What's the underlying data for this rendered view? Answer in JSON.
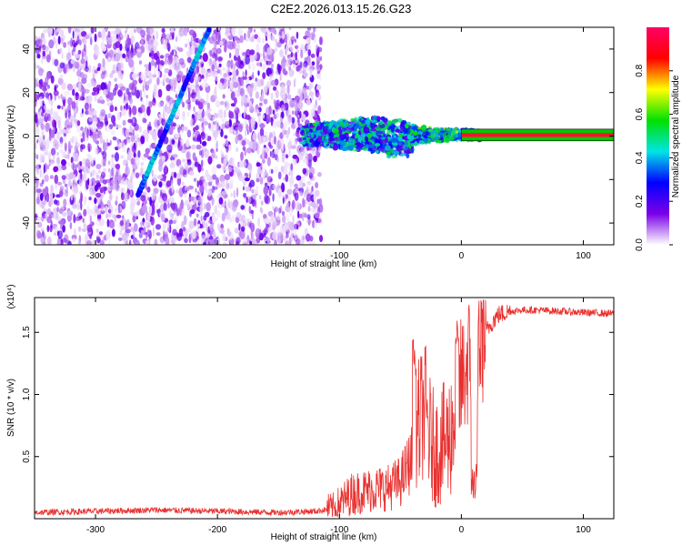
{
  "title": "C2E2.2026.013.15.26.G23",
  "chart_data": [
    {
      "type": "heatmap",
      "xlabel": "Height of straight line (km)",
      "ylabel": "Frequency (Hz)",
      "xlim": [
        -350,
        125
      ],
      "ylim": [
        -50,
        50
      ],
      "xticks": [
        -300,
        -200,
        -100,
        0,
        100
      ],
      "yticks": [
        -40,
        -20,
        0,
        20,
        40
      ],
      "colorbar": {
        "label": "Normalized spectral amplitude",
        "range": [
          0,
          1
        ],
        "ticks": [
          "0.0",
          "0.2",
          "0.4",
          "0.6",
          "0.8"
        ],
        "colors": [
          "#ffffff",
          "#7a00e8",
          "#0000ff",
          "#00e5e5",
          "#00e000",
          "#ffff00",
          "#ff0000",
          "#ff0066"
        ]
      },
      "features": {
        "noise_region_x": [
          -350,
          -130
        ],
        "doppler_line": {
          "x_start": -265,
          "y_start": -27,
          "x_end": -207,
          "y_end": 49
        },
        "carrier_band": {
          "x_start": -130,
          "x_end": 125,
          "y_center": 0.5,
          "y_halfwidth": 1.5
        }
      }
    },
    {
      "type": "line",
      "xlabel": "Height of straight line (km)",
      "ylabel": "SNR (10 * v/v)",
      "ylabel_multiplier": "(x10⁴)",
      "xlim": [
        -350,
        125
      ],
      "ylim": [
        0,
        1.78
      ],
      "xticks": [
        -300,
        -200,
        -100,
        0,
        100
      ],
      "yticks": [
        "0.5",
        "1.0",
        "1.5"
      ],
      "color": "#e8312f",
      "series": [
        {
          "x": [
            -350,
            -300,
            -250,
            -200,
            -150,
            -120,
            -105,
            -100,
            -90,
            -80,
            -70,
            -60,
            -50,
            -40,
            -35,
            -30,
            -25,
            -20,
            -15,
            -10,
            -5,
            0,
            5,
            10,
            15,
            20,
            25,
            30,
            40,
            50,
            60,
            80,
            100,
            125
          ],
          "y": [
            0.05,
            0.06,
            0.07,
            0.06,
            0.05,
            0.06,
            0.08,
            0.12,
            0.2,
            0.22,
            0.24,
            0.25,
            0.3,
            0.5,
            0.75,
            0.9,
            0.6,
            0.55,
            0.6,
            0.65,
            0.85,
            1.1,
            1.25,
            1.3,
            1.42,
            1.5,
            1.58,
            1.64,
            1.67,
            1.68,
            1.68,
            1.67,
            1.66,
            1.65
          ]
        }
      ]
    }
  ]
}
